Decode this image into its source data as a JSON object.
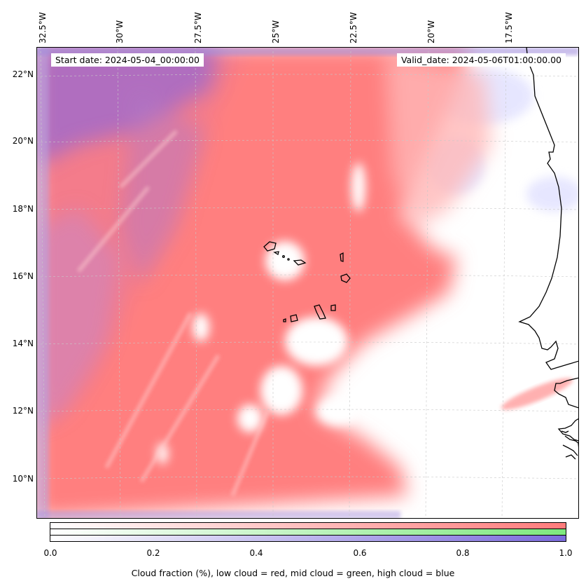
{
  "map": {
    "start_date": "Start date: 2024-05-04_00:00:00",
    "valid_date": "Valid_date: 2024-05-06T01:00:00.00",
    "longitude_labels": [
      "32.5°W",
      "30°W",
      "27.5°W",
      "25°W",
      "22.5°W",
      "20°W",
      "17.5°W"
    ],
    "latitude_labels": [
      "22°N",
      "20°N",
      "18°N",
      "16°N",
      "14°N",
      "12°N",
      "10°N"
    ],
    "extent": {
      "lon_min": -32.6,
      "lon_max": -15.4,
      "lat_min": 8.9,
      "lat_max": 22.8
    }
  },
  "colorbar": {
    "ticks": [
      "0.0",
      "0.2",
      "0.4",
      "0.6",
      "0.8",
      "1.0"
    ],
    "label": "Cloud fraction (%), low cloud = red, mid cloud = green, high cloud = blue",
    "colors": {
      "low": "#ff7b7b",
      "mid": "#7ee87e",
      "high": "#7b6bdc"
    }
  }
}
